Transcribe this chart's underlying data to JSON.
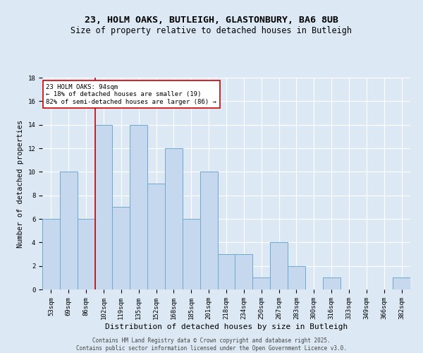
{
  "title": "23, HOLM OAKS, BUTLEIGH, GLASTONBURY, BA6 8UB",
  "subtitle": "Size of property relative to detached houses in Butleigh",
  "xlabel": "Distribution of detached houses by size in Butleigh",
  "ylabel": "Number of detached properties",
  "categories": [
    "53sqm",
    "69sqm",
    "86sqm",
    "102sqm",
    "119sqm",
    "135sqm",
    "152sqm",
    "168sqm",
    "185sqm",
    "201sqm",
    "218sqm",
    "234sqm",
    "250sqm",
    "267sqm",
    "283sqm",
    "300sqm",
    "316sqm",
    "333sqm",
    "349sqm",
    "366sqm",
    "382sqm"
  ],
  "values": [
    6,
    10,
    6,
    14,
    7,
    14,
    9,
    12,
    6,
    10,
    3,
    3,
    1,
    4,
    2,
    0,
    1,
    0,
    0,
    0,
    1
  ],
  "bar_color": "#c5d8ed",
  "bar_edgecolor": "#6fa8d0",
  "background_color": "#dce9f5",
  "grid_color": "#ffffff",
  "vline_x_index": 2.5,
  "vline_color": "#cc0000",
  "annotation_text": "23 HOLM OAKS: 94sqm\n← 18% of detached houses are smaller (19)\n82% of semi-detached houses are larger (86) →",
  "annotation_box_color": "#ffffff",
  "annotation_box_edgecolor": "#cc0000",
  "ylim": [
    0,
    18
  ],
  "yticks": [
    0,
    2,
    4,
    6,
    8,
    10,
    12,
    14,
    16,
    18
  ],
  "footer": "Contains HM Land Registry data © Crown copyright and database right 2025.\nContains public sector information licensed under the Open Government Licence v3.0.",
  "title_fontsize": 9.5,
  "subtitle_fontsize": 8.5,
  "xlabel_fontsize": 8,
  "ylabel_fontsize": 7.5,
  "tick_fontsize": 6.5,
  "footer_fontsize": 5.5,
  "annot_fontsize": 6.5
}
